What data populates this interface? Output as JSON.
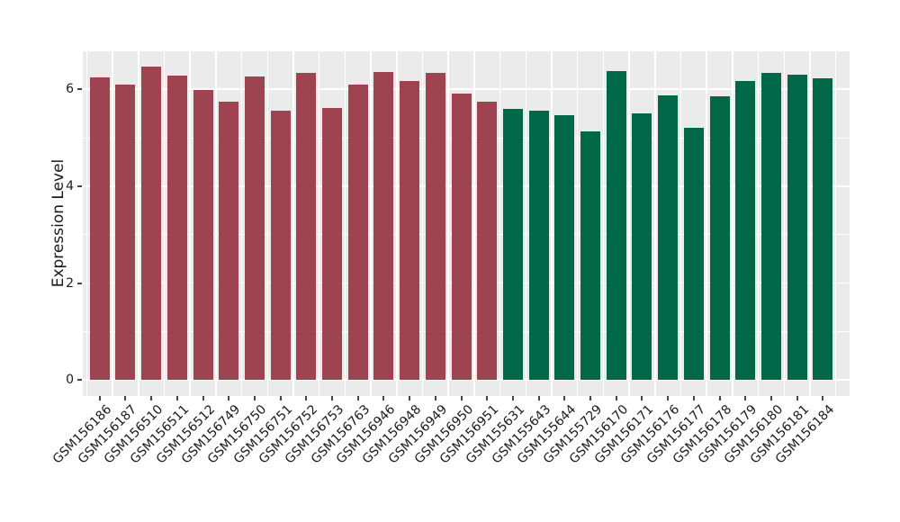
{
  "figure": {
    "background": "#FFFFFF"
  },
  "chart_data": {
    "type": "bar",
    "title": "",
    "xlabel": "",
    "ylabel": "Expression Level",
    "ylim": [
      0,
      6.8
    ],
    "yticks": [
      0,
      2,
      4,
      6
    ],
    "minor_yticks": [
      1,
      3,
      5
    ],
    "grid": true,
    "legend": false,
    "panel_background": "#EBEBEB",
    "gridline_color": "#FFFFFF",
    "tick_color": "#444444",
    "axis_text_color": "#1A1A1A",
    "group_colors": {
      "left_group": "#9E4451",
      "right_group": "#006747"
    },
    "categories": [
      "GSM156186",
      "GSM156187",
      "GSM156510",
      "GSM156511",
      "GSM156512",
      "GSM156749",
      "GSM156750",
      "GSM156751",
      "GSM156752",
      "GSM156753",
      "GSM156763",
      "GSM156946",
      "GSM156948",
      "GSM156949",
      "GSM156950",
      "GSM156951",
      "GSM155631",
      "GSM155643",
      "GSM155644",
      "GSM155729",
      "GSM156170",
      "GSM156171",
      "GSM156176",
      "GSM156177",
      "GSM156178",
      "GSM156179",
      "GSM156180",
      "GSM156181",
      "GSM156184"
    ],
    "values": [
      6.25,
      6.1,
      6.47,
      6.29,
      5.99,
      5.75,
      6.26,
      5.55,
      6.33,
      5.62,
      6.1,
      6.35,
      6.18,
      6.33,
      5.91,
      5.74,
      5.59,
      5.56,
      5.46,
      5.14,
      6.38,
      5.51,
      5.87,
      5.2,
      5.86,
      6.17,
      6.33,
      6.31,
      6.23
    ],
    "bar_colors": [
      "#9E4451",
      "#9E4451",
      "#9E4451",
      "#9E4451",
      "#9E4451",
      "#9E4451",
      "#9E4451",
      "#9E4451",
      "#9E4451",
      "#9E4451",
      "#9E4451",
      "#9E4451",
      "#9E4451",
      "#9E4451",
      "#9E4451",
      "#9E4451",
      "#006747",
      "#006747",
      "#006747",
      "#006747",
      "#006747",
      "#006747",
      "#006747",
      "#006747",
      "#006747",
      "#006747",
      "#006747",
      "#006747",
      "#006747"
    ]
  }
}
